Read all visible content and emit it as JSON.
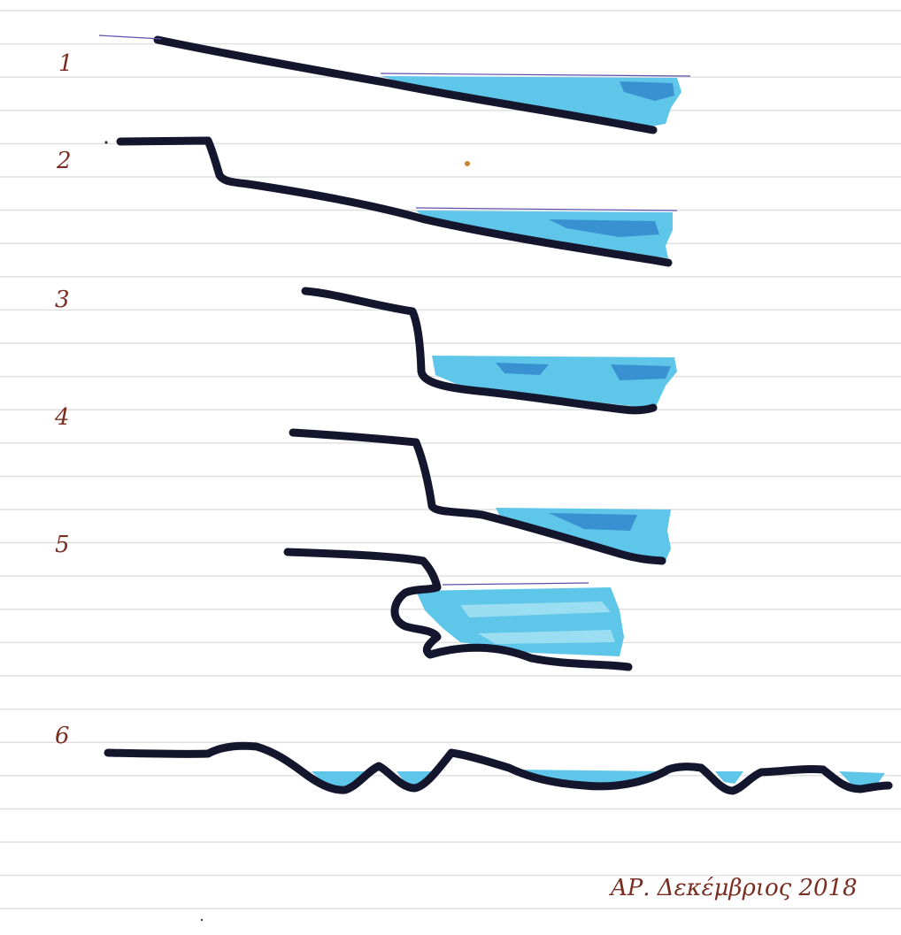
{
  "sheet": {
    "colors": {
      "paper": "#ffffff",
      "ruled_line": "#dedede",
      "coastline_ink": "#14162e",
      "water_fill": "#5ec6e8",
      "water_shadow": "#2f7fc9",
      "label_ink": "#7a2e22"
    }
  },
  "profiles": [
    {
      "label": "1"
    },
    {
      "label": "2"
    },
    {
      "label": "3"
    },
    {
      "label": "4"
    },
    {
      "label": "5"
    },
    {
      "label": "6"
    }
  ],
  "signature": "ΑΡ. Δεκέμβριος 2018"
}
